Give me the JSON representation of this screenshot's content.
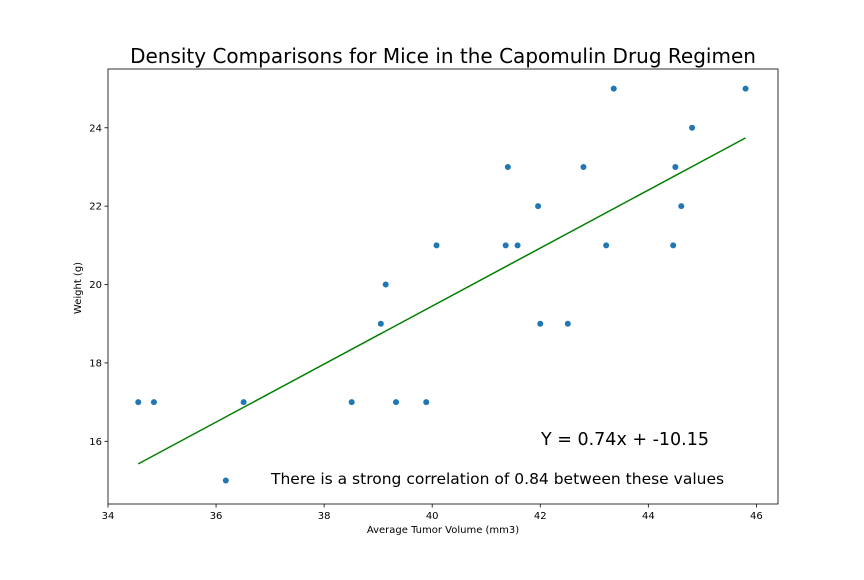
{
  "chart_data": {
    "type": "scatter",
    "title": "Density Comparisons for Mice in the Capomulin Drug Regimen",
    "xlabel": "Average Tumor Volume (mm3)",
    "ylabel": "Weight (g)",
    "xlim": [
      34.0,
      46.4
    ],
    "ylim": [
      14.4,
      25.5
    ],
    "xticks": [
      34,
      36,
      38,
      40,
      42,
      44,
      46
    ],
    "yticks": [
      16,
      18,
      20,
      22,
      24
    ],
    "grid": false,
    "points": [
      {
        "x": 34.56,
        "y": 17
      },
      {
        "x": 34.85,
        "y": 17
      },
      {
        "x": 36.18,
        "y": 15
      },
      {
        "x": 36.51,
        "y": 17
      },
      {
        "x": 38.51,
        "y": 17
      },
      {
        "x": 39.05,
        "y": 19
      },
      {
        "x": 39.14,
        "y": 20
      },
      {
        "x": 39.33,
        "y": 17
      },
      {
        "x": 39.89,
        "y": 17
      },
      {
        "x": 40.08,
        "y": 21
      },
      {
        "x": 41.36,
        "y": 21
      },
      {
        "x": 41.4,
        "y": 23
      },
      {
        "x": 41.58,
        "y": 21
      },
      {
        "x": 41.96,
        "y": 22
      },
      {
        "x": 42.0,
        "y": 19
      },
      {
        "x": 42.51,
        "y": 19
      },
      {
        "x": 42.8,
        "y": 23
      },
      {
        "x": 43.22,
        "y": 21
      },
      {
        "x": 43.36,
        "y": 25
      },
      {
        "x": 44.46,
        "y": 21
      },
      {
        "x": 44.5,
        "y": 23
      },
      {
        "x": 44.61,
        "y": 22
      },
      {
        "x": 44.81,
        "y": 24
      },
      {
        "x": 45.8,
        "y": 25
      }
    ],
    "regression": {
      "slope": 0.74,
      "intercept": -10.15,
      "x_range": [
        34.56,
        45.8
      ]
    },
    "annotations": {
      "equation": "Y = 0.74x + -10.15",
      "correlation": "There is a strong correlation of 0.84 between these values"
    },
    "colors": {
      "points": "#1f77b4",
      "line": "#008000",
      "axes": "#000000"
    }
  }
}
